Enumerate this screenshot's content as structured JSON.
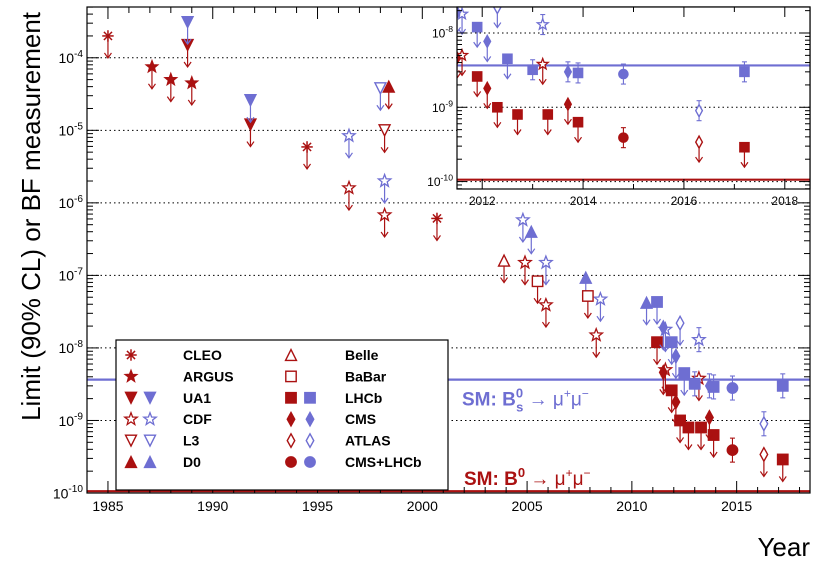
{
  "chart_data": {
    "type": "scatter",
    "title": "",
    "xlabel": "Year",
    "ylabel": "Limit (90% CL) or BF measurement",
    "xlim": [
      1984.0,
      2018.5
    ],
    "ylim_log10": [
      -10,
      -3.3
    ],
    "x_ticks": [
      {
        "v": 1985,
        "label": "1985"
      },
      {
        "v": 1990,
        "label": "1990"
      },
      {
        "v": 1995,
        "label": "1995"
      },
      {
        "v": 2000,
        "label": "2000"
      },
      {
        "v": 2005,
        "label": "2005"
      },
      {
        "v": 2010,
        "label": "2010"
      },
      {
        "v": 2015,
        "label": "2015"
      }
    ],
    "y_ticks": [
      {
        "exp": -10,
        "base": "10",
        "sup": "-10"
      },
      {
        "exp": -9,
        "base": "10",
        "sup": "-9"
      },
      {
        "exp": -8,
        "base": "10",
        "sup": "-8"
      },
      {
        "exp": -7,
        "base": "10",
        "sup": "-7"
      },
      {
        "exp": -6,
        "base": "10",
        "sup": "-6"
      },
      {
        "exp": -5,
        "base": "10",
        "sup": "-5"
      },
      {
        "exp": -4,
        "base": "10",
        "sup": "-4"
      }
    ],
    "colors": {
      "b0": "#aa1111",
      "bs": "#6e6ed2"
    },
    "sm_lines": [
      {
        "name": "sm-b0",
        "value": 1.06e-10,
        "color": "#aa1111",
        "label": "SM: B",
        "sup": "0",
        "arrow": " → ",
        "sub_mu": "μ",
        "mu_plus": "+",
        "mu_minus": "−"
      },
      {
        "name": "sm-bs",
        "value": 3.66e-09,
        "color": "#6e6ed2",
        "label": "SM: B",
        "sup": "0",
        "sub": "s",
        "arrow": " → ",
        "sub_mu": "μ",
        "mu_plus": "+",
        "mu_minus": "−"
      }
    ],
    "series": [
      {
        "name": "CLEO B0",
        "marker": "asterisk",
        "color": "#aa1111",
        "open": false,
        "points": [
          {
            "x": 1985.0,
            "y": 0.0002,
            "limit": true
          },
          {
            "x": 1994.5,
            "y": 5.9e-06,
            "limit": true
          },
          {
            "x": 2000.7,
            "y": 6.1e-07,
            "limit": true
          }
        ]
      },
      {
        "name": "ARGUS B0",
        "marker": "star",
        "color": "#aa1111",
        "open": false,
        "points": [
          {
            "x": 1987.1,
            "y": 7.5e-05,
            "limit": true
          },
          {
            "x": 1988.0,
            "y": 5e-05,
            "limit": true
          },
          {
            "x": 1989.0,
            "y": 4.5e-05,
            "limit": true
          }
        ]
      },
      {
        "name": "UA1 B0",
        "marker": "tri-down",
        "color": "#aa1111",
        "open": false,
        "points": [
          {
            "x": 1988.8,
            "y": 0.00015,
            "limit": true
          },
          {
            "x": 1991.8,
            "y": 1.2e-05,
            "limit": true
          }
        ]
      },
      {
        "name": "UA1 Bs",
        "marker": "tri-down",
        "color": "#6e6ed2",
        "open": false,
        "points": [
          {
            "x": 1988.8,
            "y": 0.00031,
            "limit": true
          },
          {
            "x": 1991.8,
            "y": 2.6e-05,
            "limit": true
          }
        ]
      },
      {
        "name": "CDF B0",
        "marker": "star",
        "color": "#aa1111",
        "open": true,
        "points": [
          {
            "x": 1996.5,
            "y": 1.6e-06,
            "limit": true
          },
          {
            "x": 1998.2,
            "y": 6.8e-07,
            "limit": true
          },
          {
            "x": 2004.9,
            "y": 1.5e-07,
            "limit": true
          },
          {
            "x": 2005.9,
            "y": 3.9e-08,
            "limit": true
          },
          {
            "x": 2008.3,
            "y": 1.5e-08,
            "limit": true
          },
          {
            "x": 2011.6,
            "y": 5e-09,
            "limit": true
          },
          {
            "x": 2013.2,
            "y": 3.8e-09,
            "limit": true
          }
        ]
      },
      {
        "name": "CDF Bs",
        "marker": "star",
        "color": "#6e6ed2",
        "open": true,
        "points": [
          {
            "x": 1996.5,
            "y": 8.4e-06,
            "limit": true
          },
          {
            "x": 1998.2,
            "y": 2e-06,
            "limit": true
          },
          {
            "x": 2004.8,
            "y": 5.8e-07,
            "limit": true
          },
          {
            "x": 2005.9,
            "y": 1.5e-07,
            "limit": true
          },
          {
            "x": 2008.5,
            "y": 4.7e-08,
            "limit": true
          },
          {
            "x": 2011.6,
            "y": 1.8e-08,
            "limit": true
          },
          {
            "x": 2013.2,
            "y": 1.3e-08,
            "limit": false
          }
        ]
      },
      {
        "name": "L3 B0",
        "marker": "tri-down",
        "color": "#aa1111",
        "open": true,
        "points": [
          {
            "x": 1998.2,
            "y": 1e-05,
            "limit": true
          }
        ]
      },
      {
        "name": "L3 Bs",
        "marker": "tri-down",
        "color": "#6e6ed2",
        "open": true,
        "points": [
          {
            "x": 1998.0,
            "y": 3.8e-05,
            "limit": true
          }
        ]
      },
      {
        "name": "D0 B0",
        "marker": "tri-up",
        "color": "#aa1111",
        "open": false,
        "points": [
          {
            "x": 1998.4,
            "y": 4e-05,
            "limit": true
          }
        ]
      },
      {
        "name": "D0 Bs",
        "marker": "tri-up",
        "color": "#6e6ed2",
        "open": false,
        "points": [
          {
            "x": 2005.2,
            "y": 4e-07,
            "limit": true
          },
          {
            "x": 2007.8,
            "y": 9.3e-08,
            "limit": true
          },
          {
            "x": 2010.7,
            "y": 4.2e-08,
            "limit": true
          }
        ]
      },
      {
        "name": "Belle B0",
        "marker": "tri-up",
        "color": "#aa1111",
        "open": true,
        "points": [
          {
            "x": 2003.9,
            "y": 1.6e-07,
            "limit": true
          }
        ]
      },
      {
        "name": "BaBar B0",
        "marker": "square",
        "color": "#aa1111",
        "open": true,
        "points": [
          {
            "x": 2005.5,
            "y": 8.3e-08,
            "limit": true
          },
          {
            "x": 2007.9,
            "y": 5.2e-08,
            "limit": true
          }
        ]
      },
      {
        "name": "LHCb B0",
        "marker": "square",
        "color": "#aa1111",
        "open": false,
        "points": [
          {
            "x": 2011.2,
            "y": 1.2e-08,
            "limit": true
          },
          {
            "x": 2011.9,
            "y": 2.6e-09,
            "limit": true
          },
          {
            "x": 2012.3,
            "y": 1e-09,
            "limit": true
          },
          {
            "x": 2012.7,
            "y": 8e-10,
            "limit": true
          },
          {
            "x": 2013.3,
            "y": 8e-10,
            "limit": true
          },
          {
            "x": 2013.9,
            "y": 6.3e-10,
            "limit": true
          },
          {
            "x": 2017.2,
            "y": 2.9e-10,
            "limit": true
          }
        ]
      },
      {
        "name": "LHCb Bs",
        "marker": "square",
        "color": "#6e6ed2",
        "open": false,
        "points": [
          {
            "x": 2011.2,
            "y": 4.3e-08,
            "limit": true
          },
          {
            "x": 2011.9,
            "y": 1.2e-08,
            "limit": true
          },
          {
            "x": 2012.5,
            "y": 4.5e-09,
            "limit": true
          },
          {
            "x": 2013.0,
            "y": 3.2e-09,
            "limit": false
          },
          {
            "x": 2013.9,
            "y": 2.9e-09,
            "limit": false
          },
          {
            "x": 2017.2,
            "y": 3e-09,
            "limit": false
          }
        ]
      },
      {
        "name": "CMS B0",
        "marker": "diamond",
        "color": "#aa1111",
        "open": false,
        "points": [
          {
            "x": 2011.5,
            "y": 4.6e-09,
            "limit": true
          },
          {
            "x": 2012.1,
            "y": 1.8e-09,
            "limit": true
          },
          {
            "x": 2013.7,
            "y": 1.1e-09,
            "limit": true
          }
        ]
      },
      {
        "name": "CMS Bs",
        "marker": "diamond",
        "color": "#6e6ed2",
        "open": false,
        "points": [
          {
            "x": 2011.5,
            "y": 1.9e-08,
            "limit": true
          },
          {
            "x": 2012.1,
            "y": 7.7e-09,
            "limit": true
          },
          {
            "x": 2013.7,
            "y": 3e-09,
            "limit": false
          }
        ]
      },
      {
        "name": "ATLAS B0",
        "marker": "diamond",
        "color": "#aa1111",
        "open": true,
        "points": [
          {
            "x": 2016.3,
            "y": 3.4e-10,
            "limit": true
          }
        ]
      },
      {
        "name": "ATLAS Bs",
        "marker": "diamond",
        "color": "#6e6ed2",
        "open": true,
        "points": [
          {
            "x": 2012.3,
            "y": 2.2e-08,
            "limit": true
          },
          {
            "x": 2016.3,
            "y": 9e-10,
            "limit": false
          }
        ]
      },
      {
        "name": "CMS+LHCb B0",
        "marker": "circle",
        "color": "#aa1111",
        "open": false,
        "points": [
          {
            "x": 2014.8,
            "y": 3.9e-10,
            "limit": false
          }
        ]
      },
      {
        "name": "CMS+LHCb Bs",
        "marker": "circle",
        "color": "#6e6ed2",
        "open": false,
        "points": [
          {
            "x": 2014.8,
            "y": 2.8e-09,
            "limit": false
          }
        ]
      }
    ],
    "legend": {
      "placement": "bottom-left",
      "entries": [
        {
          "label": "CLEO",
          "markers": [
            [
              "asterisk",
              "b0",
              false
            ]
          ]
        },
        {
          "label": "ARGUS",
          "markers": [
            [
              "star",
              "b0",
              false
            ]
          ]
        },
        {
          "label": "UA1",
          "markers": [
            [
              "tri-down",
              "b0",
              false
            ],
            [
              "tri-down",
              "bs",
              false
            ]
          ]
        },
        {
          "label": "CDF",
          "markers": [
            [
              "star",
              "b0",
              true
            ],
            [
              "star",
              "bs",
              true
            ]
          ]
        },
        {
          "label": "L3",
          "markers": [
            [
              "tri-down",
              "b0",
              true
            ],
            [
              "tri-down",
              "bs",
              true
            ]
          ]
        },
        {
          "label": "D0",
          "markers": [
            [
              "tri-up",
              "b0",
              false
            ],
            [
              "tri-up",
              "bs",
              false
            ]
          ]
        },
        {
          "label": "Belle",
          "markers": [
            [
              "tri-up",
              "b0",
              true
            ]
          ]
        },
        {
          "label": "BaBar",
          "markers": [
            [
              "square",
              "b0",
              true
            ]
          ]
        },
        {
          "label": "LHCb",
          "markers": [
            [
              "square",
              "b0",
              false
            ],
            [
              "square",
              "bs",
              false
            ]
          ]
        },
        {
          "label": "CMS",
          "markers": [
            [
              "diamond",
              "b0",
              false
            ],
            [
              "diamond",
              "bs",
              false
            ]
          ]
        },
        {
          "label": "ATLAS",
          "markers": [
            [
              "diamond",
              "b0",
              true
            ],
            [
              "diamond",
              "bs",
              true
            ]
          ]
        },
        {
          "label": "CMS+LHCb",
          "markers": [
            [
              "circle",
              "b0",
              false
            ],
            [
              "circle",
              "bs",
              false
            ]
          ]
        }
      ]
    },
    "inset": {
      "placement": "top-right",
      "xlim": [
        2011.5,
        2018.5
      ],
      "ylim_log10": [
        -10.1,
        -7.65
      ],
      "x_ticks": [
        {
          "v": 2012,
          "label": "2012"
        },
        {
          "v": 2014,
          "label": "2014"
        },
        {
          "v": 2016,
          "label": "2016"
        },
        {
          "v": 2018,
          "label": "2018"
        }
      ],
      "y_ticks": [
        {
          "exp": -10,
          "base": "10",
          "sup": "-10"
        },
        {
          "exp": -9,
          "base": "10",
          "sup": "-9"
        },
        {
          "exp": -8,
          "base": "10",
          "sup": "-8"
        }
      ]
    }
  }
}
